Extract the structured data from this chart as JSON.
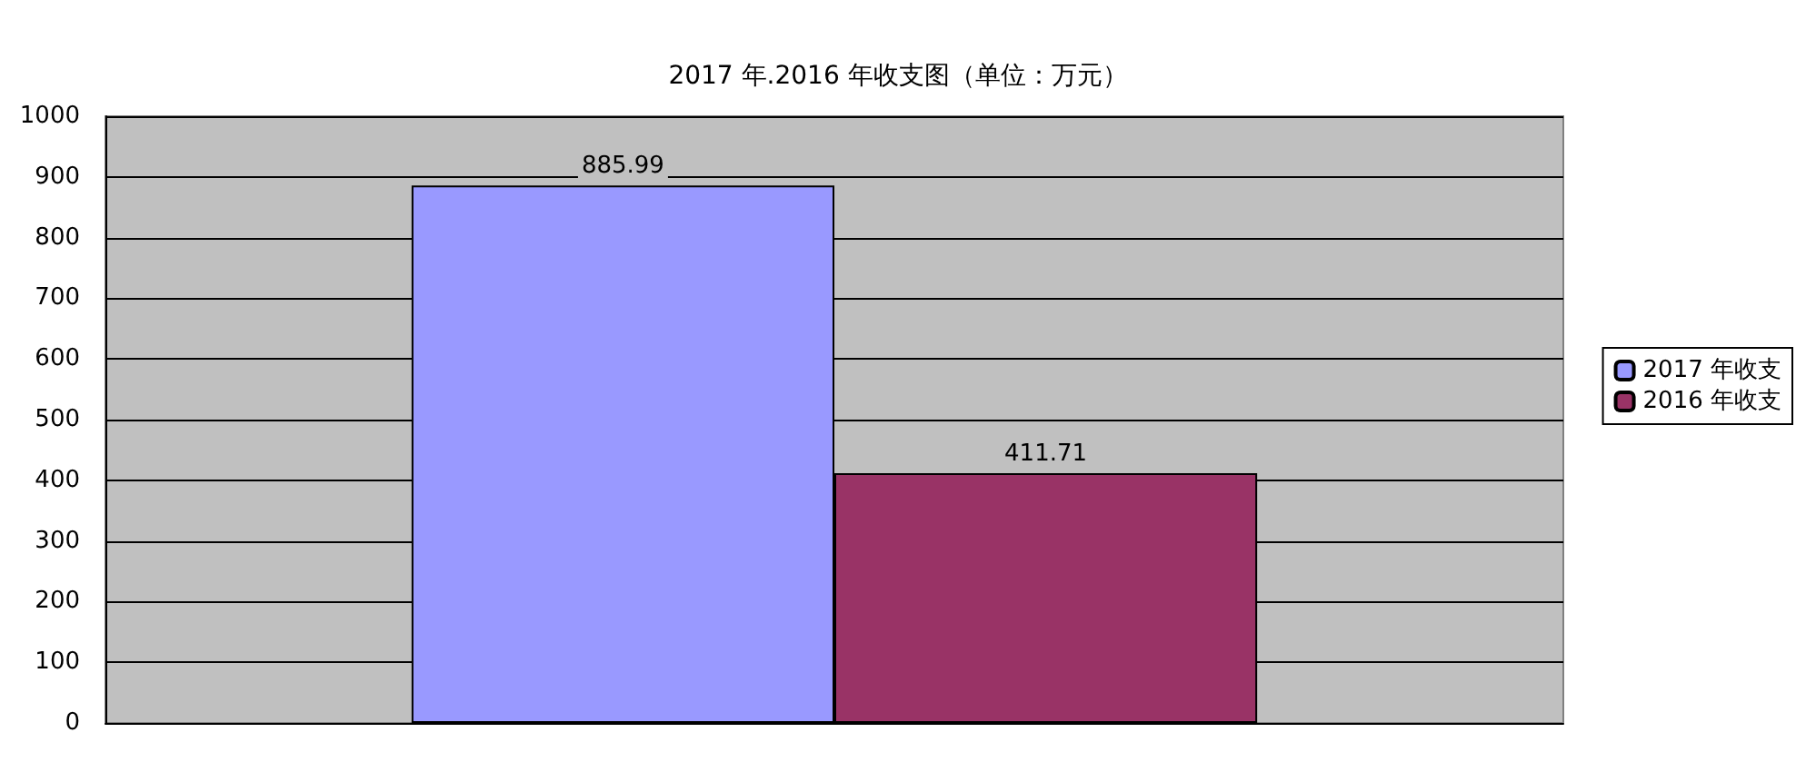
{
  "chart_data": {
    "type": "bar",
    "title": "2017 年.2016 年收支图（单位：万元）",
    "categories": [
      null
    ],
    "series": [
      {
        "name": "2017 年收支",
        "color": "#9999ff",
        "values": [
          885.99
        ]
      },
      {
        "name": "2016 年收支",
        "color": "#993366",
        "values": [
          411.71
        ]
      }
    ],
    "ylim": [
      0,
      1000
    ],
    "yticks": [
      0,
      100,
      200,
      300,
      400,
      500,
      600,
      700,
      800,
      900,
      1000
    ],
    "grid": "y",
    "legend": "right",
    "data_labels": true
  }
}
